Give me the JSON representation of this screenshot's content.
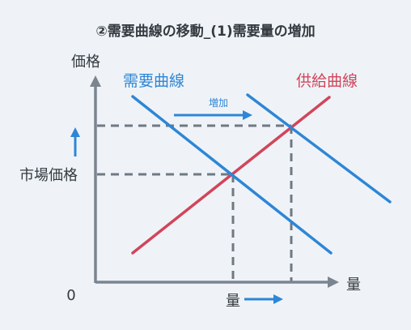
{
  "title": "②需要曲線の移動_(1)需要量の増加",
  "axes": {
    "y_label": "価格",
    "x_label": "量",
    "origin": "0",
    "price_marker": "市場価格",
    "quantity_marker": "量"
  },
  "curves": {
    "demand_label": "需要曲線",
    "supply_label": "供給曲線",
    "shift_label": "増加"
  },
  "colors": {
    "demand": "#2e86d6",
    "supply": "#d1455b",
    "axis": "#7a8590",
    "guide": "#6f7983",
    "text": "#333a40",
    "background": "#eff3f7"
  }
}
